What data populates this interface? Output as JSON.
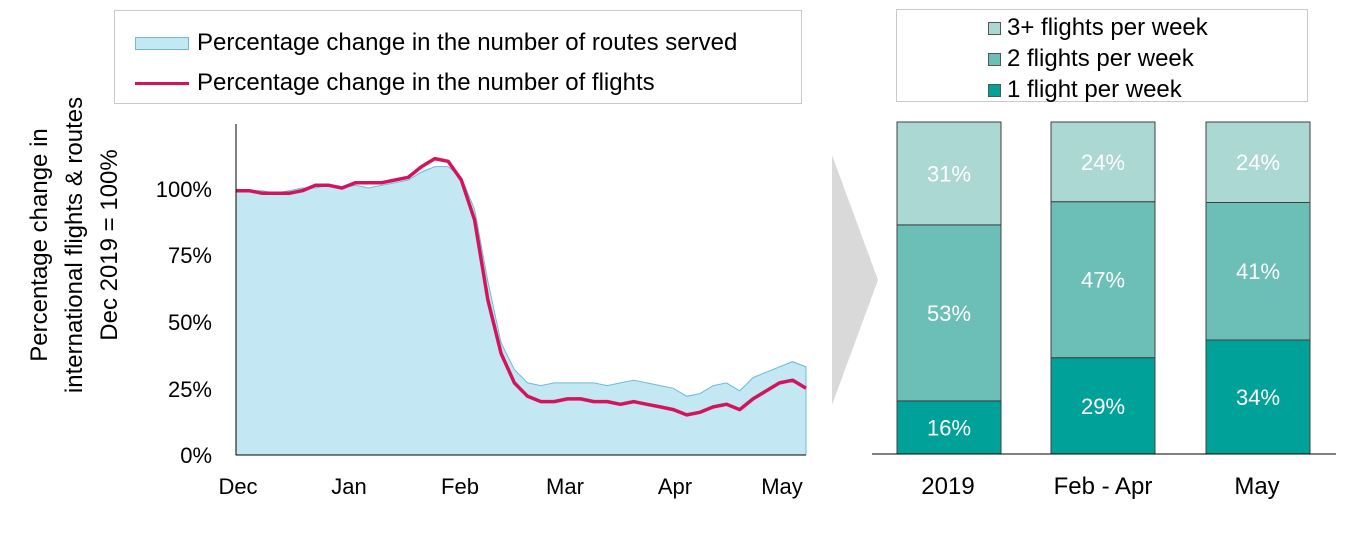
{
  "colors": {
    "area_fill": "#c3e7f3",
    "area_stroke": "#6cbcd9",
    "flights_line": "#d4145a",
    "seg_3plus": "#acd8d4",
    "seg_2": "#6bbfb6",
    "seg_1": "#00a199",
    "arrow": "#d9d9d9"
  },
  "chart_data": [
    {
      "type": "area",
      "ylabel_lines": [
        "Percentage change in",
        "international flights & routes",
        "Dec 2019 = 100%"
      ],
      "y_ticks": [
        "0%",
        "25%",
        "50%",
        "75%",
        "100%"
      ],
      "x_ticks": [
        "Dec",
        "Jan",
        "Feb",
        "Mar",
        "Apr",
        "May"
      ],
      "ylim": [
        0,
        120
      ],
      "grid": false,
      "legend_position": "top",
      "series": [
        {
          "name": "Percentage change in the number of routes served",
          "kind": "area",
          "values": [
            99,
            99,
            99,
            98,
            99,
            100,
            100,
            101,
            100,
            101,
            100,
            101,
            102,
            103,
            106,
            108,
            108,
            104,
            92,
            65,
            42,
            32,
            27,
            26,
            27,
            27,
            27,
            27,
            26,
            27,
            28,
            27,
            26,
            25,
            22,
            23,
            26,
            27,
            24,
            29,
            31,
            33,
            35,
            33
          ]
        },
        {
          "name": "Percentage change in the number of flights",
          "kind": "line",
          "values": [
            99,
            99,
            98,
            98,
            98,
            99,
            101,
            101,
            100,
            102,
            102,
            102,
            103,
            104,
            108,
            111,
            110,
            103,
            88,
            58,
            38,
            27,
            22,
            20,
            20,
            21,
            21,
            20,
            20,
            19,
            20,
            19,
            18,
            17,
            15,
            16,
            18,
            19,
            17,
            21,
            24,
            27,
            28,
            25
          ]
        }
      ]
    },
    {
      "type": "bar",
      "stacked": true,
      "categories": [
        "2019",
        "Feb - Apr",
        "May"
      ],
      "legend_position": "top",
      "series": [
        {
          "name": "1 flight per week",
          "values": [
            16,
            29,
            34
          ]
        },
        {
          "name": "2 flights per week",
          "values": [
            53,
            47,
            41
          ]
        },
        {
          "name": "3+ flights per week",
          "values": [
            31,
            24,
            24
          ]
        }
      ],
      "labels": {
        "one": [
          "16%",
          "29%",
          "34%"
        ],
        "two": [
          "53%",
          "47%",
          "41%"
        ],
        "three": [
          "31%",
          "24%",
          "24%"
        ]
      }
    }
  ]
}
